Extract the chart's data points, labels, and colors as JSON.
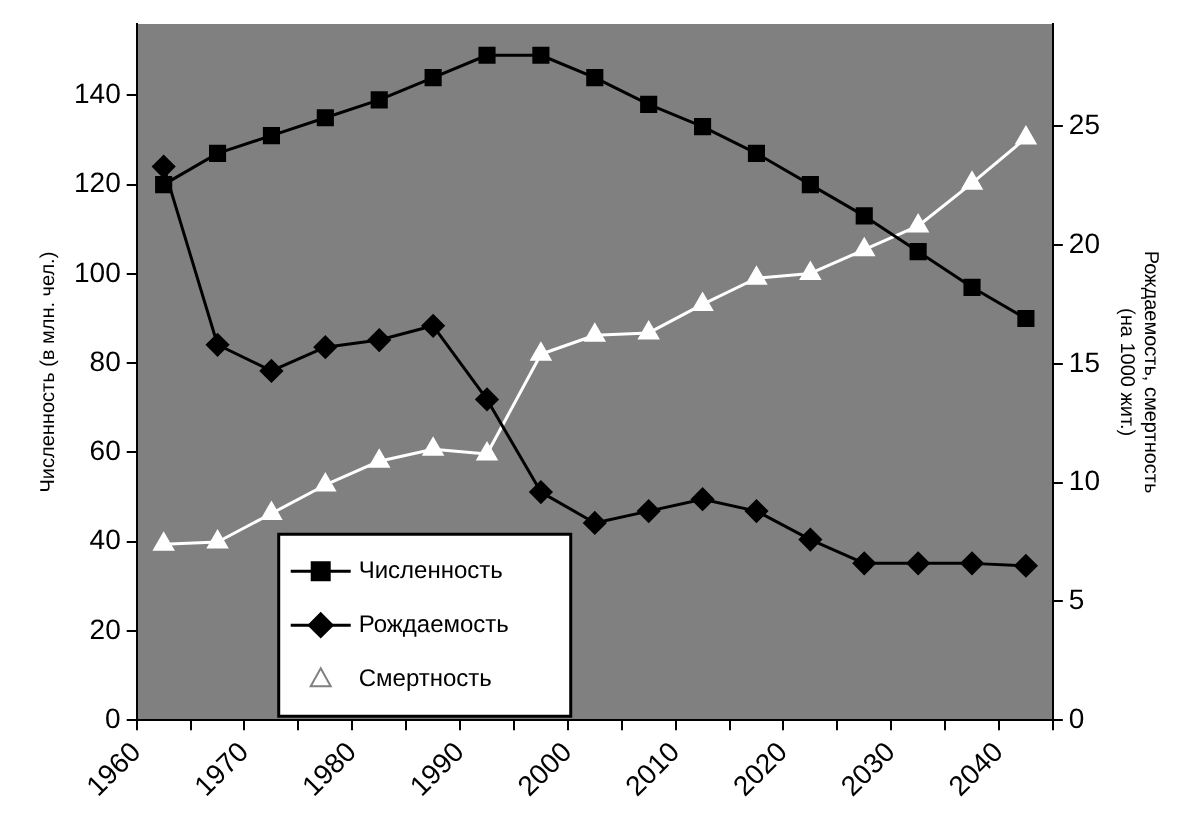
{
  "chart_data": {
    "type": "line",
    "ylabel": "Численность (в млн. чел.)",
    "y2label": "Рождаемость, смертность\n(на 1000 жит.)",
    "x": [
      1962.5,
      1967.5,
      1972.5,
      1977.5,
      1982.5,
      1987.5,
      1992.5,
      1997.5,
      2002.5,
      2007.5,
      2012.5,
      2017.5,
      2022.5,
      2027.5,
      2032.5,
      2037.5,
      2042.5
    ],
    "xlim": [
      1960,
      2045
    ],
    "xticks": [
      1960,
      {
        "value": 1965,
        "label": null
      },
      1970,
      {
        "value": 1975,
        "label": null
      },
      1980,
      {
        "value": 1985,
        "label": null
      },
      1990,
      {
        "value": 1995,
        "label": null
      },
      2000,
      {
        "value": 2005,
        "label": null
      },
      2010,
      {
        "value": 2015,
        "label": null
      },
      2020,
      {
        "value": 2025,
        "label": null
      },
      2030,
      {
        "value": 2035,
        "label": null
      },
      2040,
      {
        "value": 2045,
        "label": null
      }
    ],
    "ylim": [
      0,
      156
    ],
    "yticks": [
      0,
      20,
      40,
      60,
      80,
      100,
      120,
      140
    ],
    "y2lim": [
      0,
      29.3
    ],
    "y2ticks": [
      0,
      5,
      10,
      15,
      20,
      25
    ],
    "legend": "bottom left",
    "grid": false,
    "series": [
      {
        "name": "Численность",
        "color": "#000000",
        "marker": "square",
        "values": [
          120,
          127,
          131,
          135,
          139,
          144,
          149,
          149,
          144,
          138,
          133,
          127,
          120,
          113,
          105,
          97,
          90
        ]
      },
      {
        "name": "Рождаемость",
        "color": "#000000",
        "marker": "diamond",
        "axis": "y2",
        "values": [
          23.3,
          15.8,
          14.7,
          15.7,
          16.0,
          16.6,
          13.5,
          9.6,
          8.3,
          8.8,
          9.3,
          8.8,
          7.6,
          6.6,
          6.6,
          6.6,
          6.5
        ]
      },
      {
        "name": "Смертность",
        "color": "#ffffff",
        "marker": "triangle",
        "axis": "y2",
        "values": [
          7.4,
          7.5,
          8.7,
          9.9,
          10.9,
          11.4,
          11.2,
          15.4,
          16.2,
          16.3,
          17.5,
          18.6,
          18.8,
          19.8,
          20.8,
          22.6,
          24.5
        ]
      }
    ]
  }
}
